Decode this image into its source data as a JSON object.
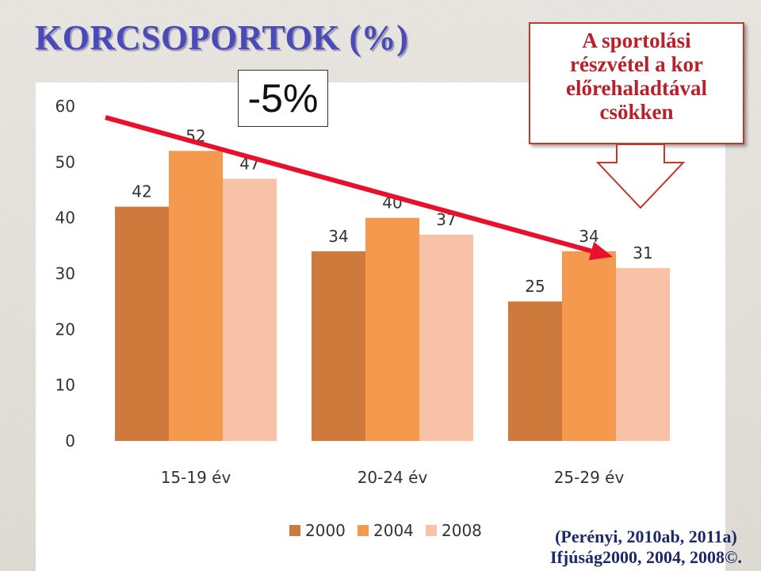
{
  "slide": {
    "title": "KORCSOPORTOK (%)",
    "change_label": "-5%",
    "callout_lines": [
      "A sportolási",
      "részvétel a kor",
      "előrehaladtával",
      "csökken"
    ],
    "source_lines": [
      "(Perényi, 2010ab, 2011a)",
      "Ifjúság2000, 2004, 2008©."
    ],
    "colors": {
      "title": "#4a4ab8",
      "callout_text": "#b8202a",
      "trend_arrow": "#e8102a",
      "callout_arrow_outline": "#c0392b"
    }
  },
  "chart_data": {
    "type": "bar",
    "categories": [
      "15-19 év",
      "20-24 év",
      "25-29 év"
    ],
    "series": [
      {
        "name": "2000",
        "values": [
          42,
          34,
          25
        ],
        "color": "#cd7a3c"
      },
      {
        "name": "2004",
        "values": [
          52,
          40,
          34
        ],
        "color": "#f4994e"
      },
      {
        "name": "2008",
        "values": [
          47,
          37,
          31
        ],
        "color": "#f8c2a8"
      }
    ],
    "yticks": [
      0,
      10,
      20,
      30,
      40,
      50,
      60
    ],
    "ylim": [
      0,
      60
    ],
    "grid": false,
    "legend": "bottom",
    "data_labels": true,
    "trend_arrow": {
      "from": {
        "category": "15-19 év",
        "value": 58
      },
      "to": {
        "category": "25-29 év",
        "value": 33
      }
    }
  }
}
